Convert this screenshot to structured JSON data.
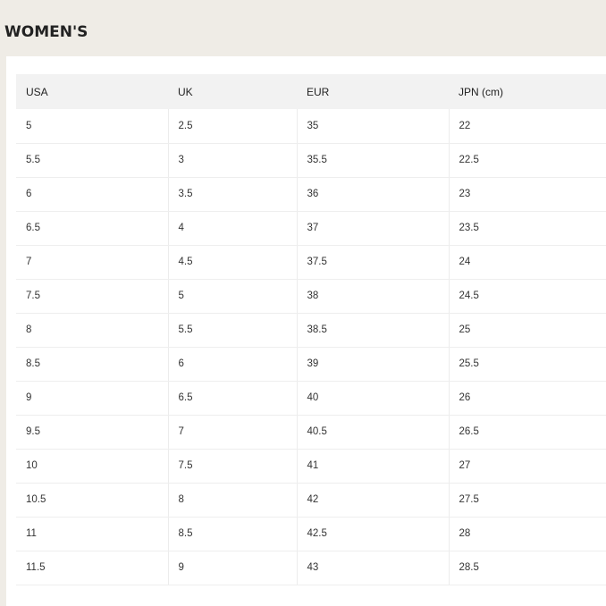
{
  "section_title": "WOMEN'S",
  "table": {
    "headers": [
      "USA",
      "UK",
      "EUR",
      "JPN (cm)"
    ],
    "rows": [
      [
        "5",
        "2.5",
        "35",
        "22"
      ],
      [
        "5.5",
        "3",
        "35.5",
        "22.5"
      ],
      [
        "6",
        "3.5",
        "36",
        "23"
      ],
      [
        "6.5",
        "4",
        "37",
        "23.5"
      ],
      [
        "7",
        "4.5",
        "37.5",
        "24"
      ],
      [
        "7.5",
        "5",
        "38",
        "24.5"
      ],
      [
        "8",
        "5.5",
        "38.5",
        "25"
      ],
      [
        "8.5",
        "6",
        "39",
        "25.5"
      ],
      [
        "9",
        "6.5",
        "40",
        "26"
      ],
      [
        "9.5",
        "7",
        "40.5",
        "26.5"
      ],
      [
        "10",
        "7.5",
        "41",
        "27"
      ],
      [
        "10.5",
        "8",
        "42",
        "27.5"
      ],
      [
        "11",
        "8.5",
        "42.5",
        "28"
      ],
      [
        "11.5",
        "9",
        "43",
        "28.5"
      ]
    ]
  }
}
